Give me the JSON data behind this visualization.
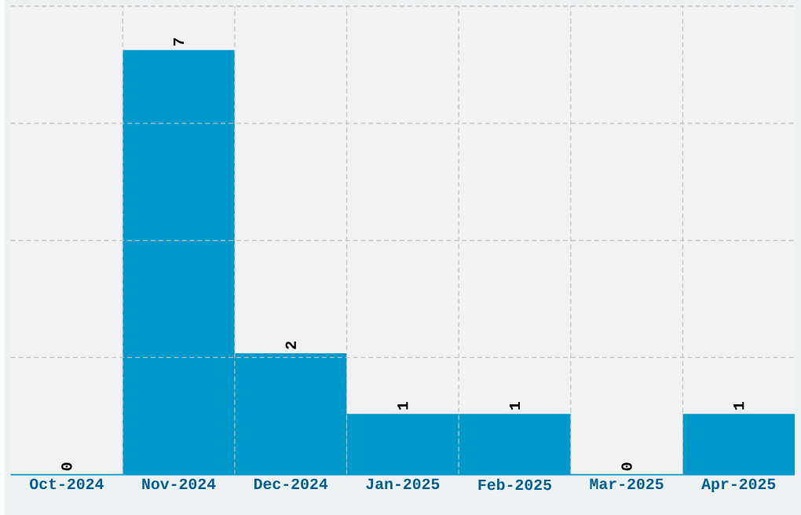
{
  "chart_data": {
    "type": "bar",
    "categories": [
      "Oct-2024",
      "Nov-2024",
      "Dec-2024",
      "Jan-2025",
      "Feb-2025",
      "Mar-2025",
      "Apr-2025"
    ],
    "values": [
      0,
      7,
      2,
      1,
      1,
      0,
      1
    ],
    "color": "#0099cc",
    "data_labels": true,
    "grid": true,
    "tick_labels": "x"
  }
}
